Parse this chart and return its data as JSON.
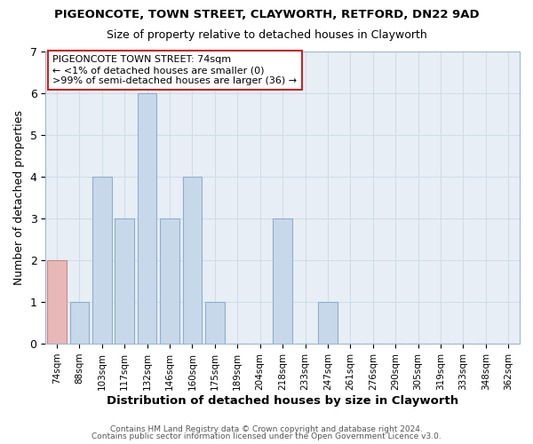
{
  "title": "PIGEONCOTE, TOWN STREET, CLAYWORTH, RETFORD, DN22 9AD",
  "subtitle": "Size of property relative to detached houses in Clayworth",
  "xlabel": "Distribution of detached houses by size in Clayworth",
  "ylabel": "Number of detached properties",
  "footer_line1": "Contains HM Land Registry data © Crown copyright and database right 2024.",
  "footer_line2": "Contains public sector information licensed under the Open Government Licence v3.0.",
  "bin_labels": [
    "74sqm",
    "88sqm",
    "103sqm",
    "117sqm",
    "132sqm",
    "146sqm",
    "160sqm",
    "175sqm",
    "189sqm",
    "204sqm",
    "218sqm",
    "233sqm",
    "247sqm",
    "261sqm",
    "276sqm",
    "290sqm",
    "305sqm",
    "319sqm",
    "333sqm",
    "348sqm",
    "362sqm"
  ],
  "bar_heights": [
    2,
    1,
    4,
    3,
    6,
    3,
    4,
    1,
    0,
    0,
    3,
    0,
    1,
    0,
    0,
    0,
    0,
    0,
    0,
    0,
    0
  ],
  "bar_color": "#c8d8eb",
  "bar_edge_color": "#8ab0cc",
  "highlight_index": 0,
  "highlight_bar_color": "#e8b8b8",
  "highlight_bar_edge_color": "#cc8888",
  "ylim": [
    0,
    7
  ],
  "yticks": [
    0,
    1,
    2,
    3,
    4,
    5,
    6,
    7
  ],
  "annotation_box_text_line1": "PIGEONCOTE TOWN STREET: 74sqm",
  "annotation_box_text_line2": "← <1% of detached houses are smaller (0)",
  "annotation_box_text_line3": ">99% of semi-detached houses are larger (36) →",
  "grid_color": "#d0dde8",
  "background_color": "#ffffff",
  "plot_bg_color": "#e8eef5"
}
